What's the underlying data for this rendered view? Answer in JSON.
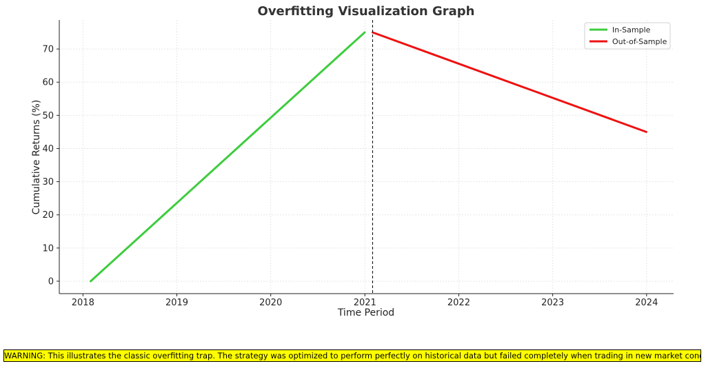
{
  "chart_data": {
    "type": "line",
    "title": "Overfitting Visualization Graph",
    "xlabel": "Time Period",
    "ylabel": "Cumulative Returns (%)",
    "x_ticks": [
      "2018",
      "2019",
      "2020",
      "2021",
      "2022",
      "2023",
      "2024"
    ],
    "y_ticks": [
      "0",
      "10",
      "20",
      "30",
      "40",
      "50",
      "60",
      "70"
    ],
    "xlim": [
      "2017-10-01",
      "2024-04-15"
    ],
    "ylim": [
      -3.75,
      78.75
    ],
    "grid": true,
    "legend_position": "top-right",
    "split_date": "2021-01-31",
    "series": [
      {
        "name": "In-Sample",
        "color": "#3ecc3e",
        "points": [
          [
            "2018-01-31",
            0
          ],
          [
            "2020-12-31",
            75
          ]
        ]
      },
      {
        "name": "Out-of-Sample",
        "color": "#ee1111",
        "points": [
          [
            "2021-01-31",
            75
          ],
          [
            "2023-12-31",
            45
          ]
        ]
      }
    ]
  },
  "warning": "WARNING: This illustrates the classic overfitting trap. The strategy was optimized to perform perfectly on historical data but failed completely when trading in new market conditions."
}
